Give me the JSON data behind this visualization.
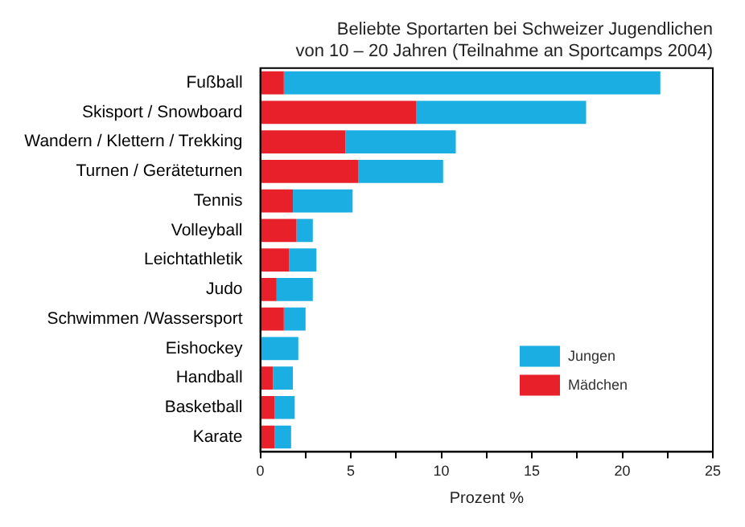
{
  "chart_data": {
    "type": "bar",
    "orientation": "horizontal",
    "stacked": true,
    "title": [
      "Beliebte Sportarten bei Schweizer Jugendlichen",
      "von 10 – 20 Jahren (Teilnahme an Sportcamps 2004)"
    ],
    "xlabel": "Prozent %",
    "categories": [
      "Fußball",
      "Skisport / Snowboard",
      "Wandern / Klettern / Trekking",
      "Turnen / Geräteturnen",
      "Tennis",
      "Volleyball",
      "Leichtathletik",
      "Judo",
      "Schwimmen /Wassersport",
      "Eishockey",
      "Handball",
      "Basketball",
      "Karate"
    ],
    "series": [
      {
        "name": "Mädchen",
        "color": "#e8202a",
        "values": [
          1.3,
          8.6,
          4.7,
          5.4,
          1.8,
          2.0,
          1.6,
          0.9,
          1.3,
          0,
          0.7,
          0.8,
          0.8
        ]
      },
      {
        "name": "Jungen",
        "color": "#1aaee2",
        "values": [
          20.8,
          9.4,
          6.1,
          4.7,
          3.3,
          0.9,
          1.5,
          2.0,
          1.2,
          2.1,
          1.1,
          1.1,
          0.9
        ]
      }
    ],
    "xlim": [
      0,
      25
    ],
    "xticks": [
      0,
      {
        "value": 2.5,
        "label": null
      },
      5,
      {
        "value": 7.5,
        "label": null
      },
      10,
      {
        "value": 12.5,
        "label": null
      },
      15,
      {
        "value": 17.5,
        "label": null
      },
      20,
      {
        "value": 22.5,
        "label": null
      },
      25
    ],
    "grid": false,
    "legend": "bottom right"
  }
}
